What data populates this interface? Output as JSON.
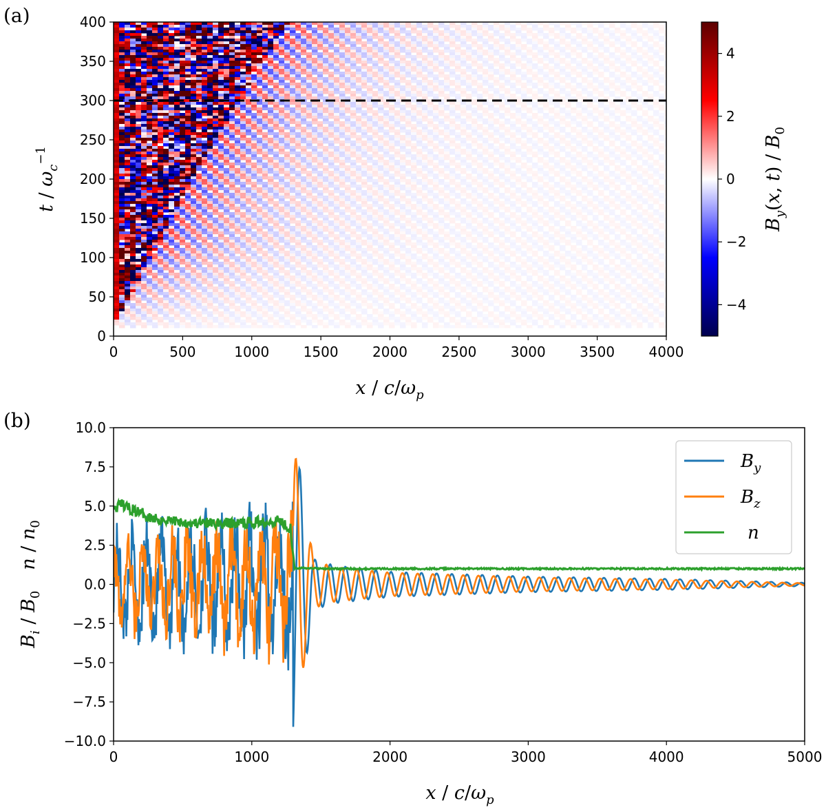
{
  "figure": {
    "panel_a_label": "(a)",
    "panel_b_label": "(b)"
  },
  "chart_data": [
    {
      "type": "heatmap",
      "panel": "(a)",
      "xlabel": "x / c/ω_p",
      "ylabel": "t / ω_c^-1",
      "colorbar_label": "B_y(x,t) / B_0",
      "xlim": [
        0,
        4000
      ],
      "ylim": [
        0,
        400
      ],
      "clim": [
        -5,
        5
      ],
      "colormap": [
        "#00004d",
        "#0000ff",
        "#ffffff",
        "#ff0000",
        "#5c0000"
      ],
      "x_ticks": [
        0,
        500,
        1000,
        1500,
        2000,
        2500,
        3000,
        3500,
        4000
      ],
      "y_ticks": [
        0,
        50,
        100,
        150,
        200,
        250,
        300,
        350,
        400
      ],
      "colorbar_ticks": [
        -4,
        -2,
        0,
        2,
        4
      ],
      "colorbar_tick_labels": [
        "−4",
        "−2",
        "0",
        "2",
        "4"
      ],
      "shock_front": [
        [
          0,
          15
        ],
        [
          100,
          45
        ],
        [
          300,
          110
        ],
        [
          500,
          180
        ],
        [
          700,
          240
        ],
        [
          900,
          300
        ],
        [
          1100,
          355
        ],
        [
          1280,
          400
        ]
      ],
      "reference_line": {
        "t": 300,
        "style": "dashed",
        "color": "#000000"
      }
    },
    {
      "type": "line",
      "panel": "(b)",
      "xlabel": "x / c/ω_p",
      "ylabel": "B_i / B_0    n / n_0",
      "xlim": [
        0,
        5000
      ],
      "ylim": [
        -10,
        10
      ],
      "x_ticks": [
        0,
        1000,
        2000,
        3000,
        4000,
        5000
      ],
      "y_ticks": [
        -10.0,
        -7.5,
        -5.0,
        -2.5,
        0.0,
        2.5,
        5.0,
        7.5,
        10.0
      ],
      "y_tick_labels": [
        "−10.0",
        "−7.5",
        "−5.0",
        "−2.5",
        "0.0",
        "2.5",
        "5.0",
        "7.5",
        "10.0"
      ],
      "legend_position": "top-right",
      "series": [
        {
          "name": "B_y",
          "color": "#1f77b4",
          "x": [
            0,
            1280,
            1300,
            1450,
            1600,
            2000,
            3000,
            4000,
            5000
          ],
          "envelope": [
            4,
            6,
            10,
            1.6,
            1.2,
            0.8,
            0.5,
            0.35,
            0.1
          ],
          "wavelength": 110,
          "phase": 0
        },
        {
          "name": "B_z",
          "color": "#ff7f0e",
          "x": [
            0,
            1280,
            1300,
            1450,
            1600,
            2000,
            3000,
            4000,
            5000
          ],
          "envelope": [
            3.5,
            5.5,
            9,
            1.5,
            1.1,
            0.75,
            0.45,
            0.3,
            0.08
          ],
          "wavelength": 110,
          "phase": 1.57
        },
        {
          "name": "n",
          "color": "#2ca02c",
          "x": [
            0,
            60,
            100,
            300,
            600,
            900,
            1200,
            1280,
            1310,
            1600,
            5000
          ],
          "y": [
            4.8,
            5.1,
            4.9,
            4.2,
            3.9,
            3.9,
            4.1,
            3.6,
            1.05,
            1.0,
            1.0
          ]
        }
      ]
    }
  ]
}
